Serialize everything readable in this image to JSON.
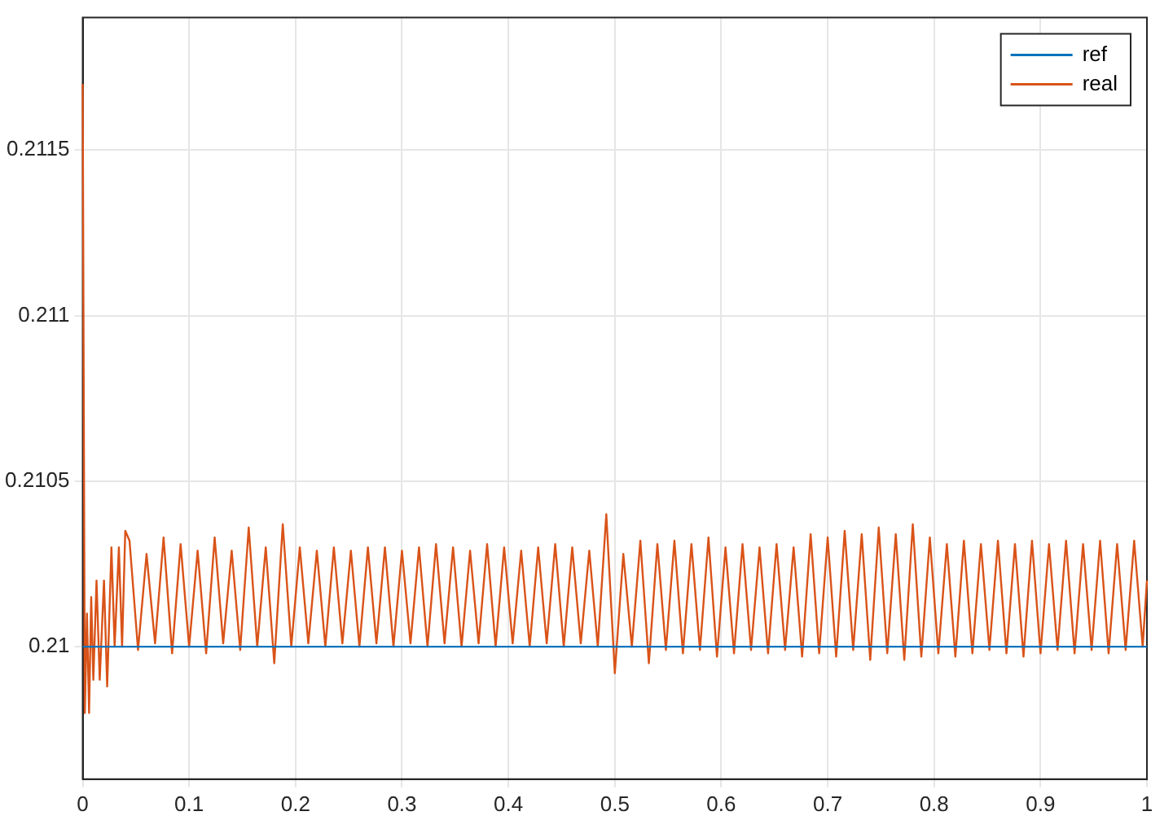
{
  "chart_data": {
    "type": "line",
    "xlim": [
      0,
      1
    ],
    "ylim": [
      0.2096,
      0.2119
    ],
    "xticks": [
      0,
      0.1,
      0.2,
      0.3,
      0.4,
      0.5,
      0.6,
      0.7,
      0.8,
      0.9,
      1
    ],
    "yticks": [
      0.21,
      0.2105,
      0.211,
      0.2115
    ],
    "grid": true,
    "legend": "top right",
    "marker": "none",
    "line_style": "solid",
    "series": [
      {
        "name": "ref",
        "color": "#0072bd",
        "x": [
          0,
          1
        ],
        "values": [
          0.21,
          0.21
        ]
      },
      {
        "name": "real",
        "color": "#d95319",
        "x": [
          0,
          0.002,
          0.004,
          0.006,
          0.008,
          0.01,
          0.013,
          0.016,
          0.02,
          0.023,
          0.027,
          0.03,
          0.034,
          0.037,
          0.04,
          0.044,
          0.052,
          0.06,
          0.068,
          0.076,
          0.084,
          0.092,
          0.1,
          0.108,
          0.116,
          0.124,
          0.132,
          0.14,
          0.148,
          0.156,
          0.164,
          0.172,
          0.18,
          0.188,
          0.196,
          0.204,
          0.212,
          0.22,
          0.228,
          0.236,
          0.244,
          0.252,
          0.26,
          0.268,
          0.276,
          0.284,
          0.292,
          0.3,
          0.308,
          0.316,
          0.324,
          0.332,
          0.34,
          0.348,
          0.356,
          0.364,
          0.372,
          0.38,
          0.388,
          0.396,
          0.404,
          0.412,
          0.42,
          0.428,
          0.436,
          0.444,
          0.452,
          0.46,
          0.468,
          0.476,
          0.484,
          0.492,
          0.5,
          0.508,
          0.516,
          0.524,
          0.532,
          0.54,
          0.548,
          0.556,
          0.564,
          0.572,
          0.58,
          0.588,
          0.596,
          0.604,
          0.612,
          0.62,
          0.628,
          0.636,
          0.644,
          0.652,
          0.66,
          0.668,
          0.676,
          0.684,
          0.692,
          0.7,
          0.708,
          0.716,
          0.724,
          0.732,
          0.74,
          0.748,
          0.756,
          0.764,
          0.772,
          0.78,
          0.788,
          0.796,
          0.804,
          0.812,
          0.82,
          0.828,
          0.836,
          0.844,
          0.852,
          0.86,
          0.868,
          0.876,
          0.884,
          0.892,
          0.9,
          0.908,
          0.916,
          0.924,
          0.932,
          0.94,
          0.948,
          0.956,
          0.964,
          0.972,
          0.98,
          0.988,
          0.996,
          1
        ],
        "values": [
          0.2117,
          0.2098,
          0.2101,
          0.2098,
          0.21015,
          0.2099,
          0.2102,
          0.2099,
          0.2102,
          0.20988,
          0.2103,
          0.21,
          0.2103,
          0.21,
          0.21035,
          0.21032,
          0.20999,
          0.21028,
          0.21001,
          0.21033,
          0.20998,
          0.21031,
          0.21,
          0.21029,
          0.20998,
          0.21033,
          0.21001,
          0.21029,
          0.20999,
          0.21036,
          0.21,
          0.2103,
          0.20995,
          0.21037,
          0.21,
          0.2103,
          0.21001,
          0.21029,
          0.21,
          0.2103,
          0.21001,
          0.21029,
          0.21,
          0.2103,
          0.21001,
          0.2103,
          0.21,
          0.21029,
          0.21001,
          0.2103,
          0.21,
          0.21031,
          0.21001,
          0.2103,
          0.21,
          0.21029,
          0.21001,
          0.21031,
          0.21,
          0.2103,
          0.21001,
          0.21029,
          0.21,
          0.2103,
          0.21001,
          0.21031,
          0.21,
          0.2103,
          0.21001,
          0.21029,
          0.21,
          0.2104,
          0.20992,
          0.21028,
          0.21,
          0.21032,
          0.20995,
          0.21031,
          0.20999,
          0.21032,
          0.20998,
          0.21031,
          0.20999,
          0.21033,
          0.20997,
          0.2103,
          0.20998,
          0.21031,
          0.20999,
          0.2103,
          0.20998,
          0.21031,
          0.20999,
          0.2103,
          0.20997,
          0.21034,
          0.20998,
          0.21033,
          0.20997,
          0.21035,
          0.20999,
          0.21034,
          0.20996,
          0.21036,
          0.20998,
          0.21034,
          0.20996,
          0.21037,
          0.20997,
          0.21033,
          0.20998,
          0.21031,
          0.20997,
          0.21032,
          0.20998,
          0.21031,
          0.20999,
          0.21032,
          0.20998,
          0.21031,
          0.20997,
          0.21032,
          0.20998,
          0.21031,
          0.20999,
          0.21032,
          0.20998,
          0.21031,
          0.20999,
          0.21032,
          0.20998,
          0.21031,
          0.20999,
          0.21032,
          0.21,
          0.2102
        ]
      }
    ]
  }
}
